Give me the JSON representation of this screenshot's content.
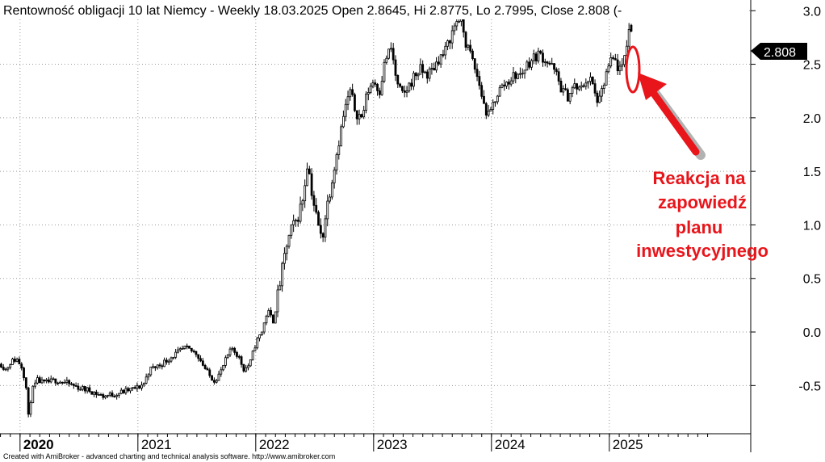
{
  "chart_data": {
    "type": "candlestick",
    "title": "Rentowność obligacji 10 lat Niemcy - Weekly 18.03.2025 Open 2.8645, Hi 2.8775, Lo 2.7995, Close 2.808 (-",
    "y_ticks": [
      "3.0",
      "2.5",
      "2.0",
      "1.5",
      "1.0",
      "0.5",
      "0.0",
      "-0.5"
    ],
    "y_tick_values": [
      3.0,
      2.5,
      2.0,
      1.5,
      1.0,
      0.5,
      0.0,
      -0.5
    ],
    "ylim": [
      -0.95,
      3.1
    ],
    "x_ticks": [
      "2020",
      "2021",
      "2022",
      "2023",
      "2024",
      "2025"
    ],
    "x_tick_values": [
      2020.0,
      2021.0,
      2022.0,
      2023.0,
      2024.0,
      2025.0
    ],
    "xlim": [
      2019.83,
      2026.2
    ],
    "last_close": 2.808,
    "last_label": "2.808",
    "last_open": 2.8645,
    "last_high": 2.8775,
    "last_low": 2.7995,
    "grid": true,
    "key_points": [
      [
        2019.84,
        -0.3
      ],
      [
        2019.88,
        -0.35
      ],
      [
        2019.92,
        -0.28
      ],
      [
        2019.97,
        -0.25
      ],
      [
        2020.02,
        -0.33
      ],
      [
        2020.05,
        -0.5
      ],
      [
        2020.07,
        -0.8
      ],
      [
        2020.1,
        -0.55
      ],
      [
        2020.15,
        -0.45
      ],
      [
        2020.2,
        -0.48
      ],
      [
        2020.3,
        -0.45
      ],
      [
        2020.4,
        -0.48
      ],
      [
        2020.5,
        -0.52
      ],
      [
        2020.6,
        -0.55
      ],
      [
        2020.7,
        -0.6
      ],
      [
        2020.8,
        -0.58
      ],
      [
        2020.9,
        -0.55
      ],
      [
        2021.0,
        -0.52
      ],
      [
        2021.05,
        -0.48
      ],
      [
        2021.1,
        -0.35
      ],
      [
        2021.2,
        -0.3
      ],
      [
        2021.3,
        -0.22
      ],
      [
        2021.4,
        -0.15
      ],
      [
        2021.5,
        -0.2
      ],
      [
        2021.55,
        -0.3
      ],
      [
        2021.6,
        -0.4
      ],
      [
        2021.65,
        -0.45
      ],
      [
        2021.7,
        -0.38
      ],
      [
        2021.75,
        -0.25
      ],
      [
        2021.8,
        -0.15
      ],
      [
        2021.85,
        -0.22
      ],
      [
        2021.9,
        -0.35
      ],
      [
        2021.95,
        -0.3
      ],
      [
        2022.0,
        -0.1
      ],
      [
        2022.05,
        0.0
      ],
      [
        2022.1,
        0.2
      ],
      [
        2022.15,
        0.1
      ],
      [
        2022.18,
        0.3
      ],
      [
        2022.22,
        0.55
      ],
      [
        2022.26,
        0.8
      ],
      [
        2022.3,
        0.95
      ],
      [
        2022.35,
        1.05
      ],
      [
        2022.4,
        1.25
      ],
      [
        2022.44,
        1.6
      ],
      [
        2022.47,
        1.35
      ],
      [
        2022.5,
        1.15
      ],
      [
        2022.53,
        1.0
      ],
      [
        2022.56,
        0.85
      ],
      [
        2022.6,
        1.15
      ],
      [
        2022.65,
        1.45
      ],
      [
        2022.7,
        1.75
      ],
      [
        2022.75,
        2.05
      ],
      [
        2022.8,
        2.25
      ],
      [
        2022.85,
        2.05
      ],
      [
        2022.9,
        2.0
      ],
      [
        2022.95,
        2.25
      ],
      [
        2023.0,
        2.35
      ],
      [
        2023.05,
        2.25
      ],
      [
        2023.1,
        2.55
      ],
      [
        2023.15,
        2.65
      ],
      [
        2023.2,
        2.3
      ],
      [
        2023.25,
        2.2
      ],
      [
        2023.3,
        2.3
      ],
      [
        2023.35,
        2.4
      ],
      [
        2023.4,
        2.45
      ],
      [
        2023.45,
        2.4
      ],
      [
        2023.5,
        2.45
      ],
      [
        2023.55,
        2.55
      ],
      [
        2023.6,
        2.6
      ],
      [
        2023.65,
        2.75
      ],
      [
        2023.7,
        2.9
      ],
      [
        2023.74,
        2.95
      ],
      [
        2023.78,
        2.7
      ],
      [
        2023.82,
        2.6
      ],
      [
        2023.86,
        2.45
      ],
      [
        2023.9,
        2.3
      ],
      [
        2023.94,
        2.1
      ],
      [
        2023.98,
        2.0
      ],
      [
        2024.02,
        2.15
      ],
      [
        2024.06,
        2.25
      ],
      [
        2024.1,
        2.3
      ],
      [
        2024.15,
        2.35
      ],
      [
        2024.2,
        2.4
      ],
      [
        2024.25,
        2.4
      ],
      [
        2024.3,
        2.5
      ],
      [
        2024.35,
        2.55
      ],
      [
        2024.4,
        2.6
      ],
      [
        2024.45,
        2.55
      ],
      [
        2024.5,
        2.5
      ],
      [
        2024.55,
        2.4
      ],
      [
        2024.6,
        2.25
      ],
      [
        2024.65,
        2.2
      ],
      [
        2024.7,
        2.3
      ],
      [
        2024.75,
        2.25
      ],
      [
        2024.8,
        2.35
      ],
      [
        2024.85,
        2.35
      ],
      [
        2024.88,
        2.2
      ],
      [
        2024.92,
        2.15
      ],
      [
        2024.96,
        2.35
      ],
      [
        2025.0,
        2.5
      ],
      [
        2025.04,
        2.55
      ],
      [
        2025.08,
        2.45
      ],
      [
        2025.11,
        2.45
      ],
      [
        2025.14,
        2.65
      ],
      [
        2025.17,
        2.85
      ],
      [
        2025.21,
        2.81
      ]
    ],
    "annotation": {
      "lines": [
        "Reakcja na",
        "zapowiedź",
        "planu",
        "inwestycyjnego"
      ]
    }
  },
  "footer": "Created with AmiBroker - advanced charting and technical analysis software. http://www.amibroker.com",
  "colors": {
    "candle": "#000000",
    "grid": "#9a9a9a",
    "annotation": "#e8151b",
    "label_bg": "#000000",
    "label_fg": "#ffffff"
  }
}
